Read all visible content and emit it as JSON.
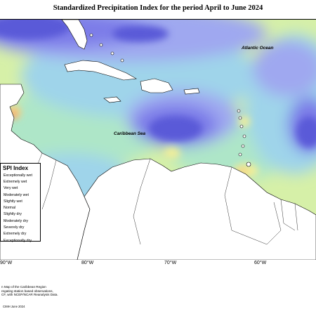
{
  "title": "Standardized Precipitation Index for the period April to June 2024",
  "map": {
    "region": "Caribbean",
    "region_labels": {
      "atlantic": "Atlantic Ocean",
      "caribbean_sea": "Caribbean Sea"
    },
    "longitude_labels": [
      "90°W",
      "80°W",
      "70°W",
      "60°W"
    ],
    "colors": {
      "exceptionally_wet": "#5a5ad8",
      "extremely_wet": "#7b7be8",
      "very_wet": "#9fa8f0",
      "moderately_wet": "#9fd4ea",
      "slightly_wet": "#aee6c8",
      "normal": "#d6f0a8",
      "slightly_dry": "#f0ee9a",
      "moderately_dry": "#f5d080",
      "severely_dry": "#f4a070",
      "land": "#ffffff"
    }
  },
  "legend": {
    "title": "SPI Index",
    "items": [
      {
        "label": "Exceptionally wet",
        "color": "#5a5ad8"
      },
      {
        "label": "Extremely wet",
        "color": "#7b7be8"
      },
      {
        "label": "Very wet",
        "color": "#9fa8f0"
      },
      {
        "label": "Moderately wet",
        "color": "#9fd4ea"
      },
      {
        "label": "Slightly wet",
        "color": "#aee6c8"
      },
      {
        "label": "Normal",
        "color": "#d6f0a8"
      },
      {
        "label": "Slightly dry",
        "color": "#f0ee9a"
      },
      {
        "label": "Moderately dry",
        "color": "#f5d080"
      },
      {
        "label": "Severely dry",
        "color": "#f4a070"
      },
      {
        "label": "Extremely dry",
        "color": "#e85050"
      },
      {
        "label": "Exceptionally dry",
        "color": "#b82828"
      }
    ]
  },
  "footer": {
    "lines": [
      "n Map of the Caribbean Region",
      "regating station based observations,",
      "CF, with NCEP/NCAR Reanalysis Data."
    ],
    "credit": "CIMH June 2024"
  }
}
